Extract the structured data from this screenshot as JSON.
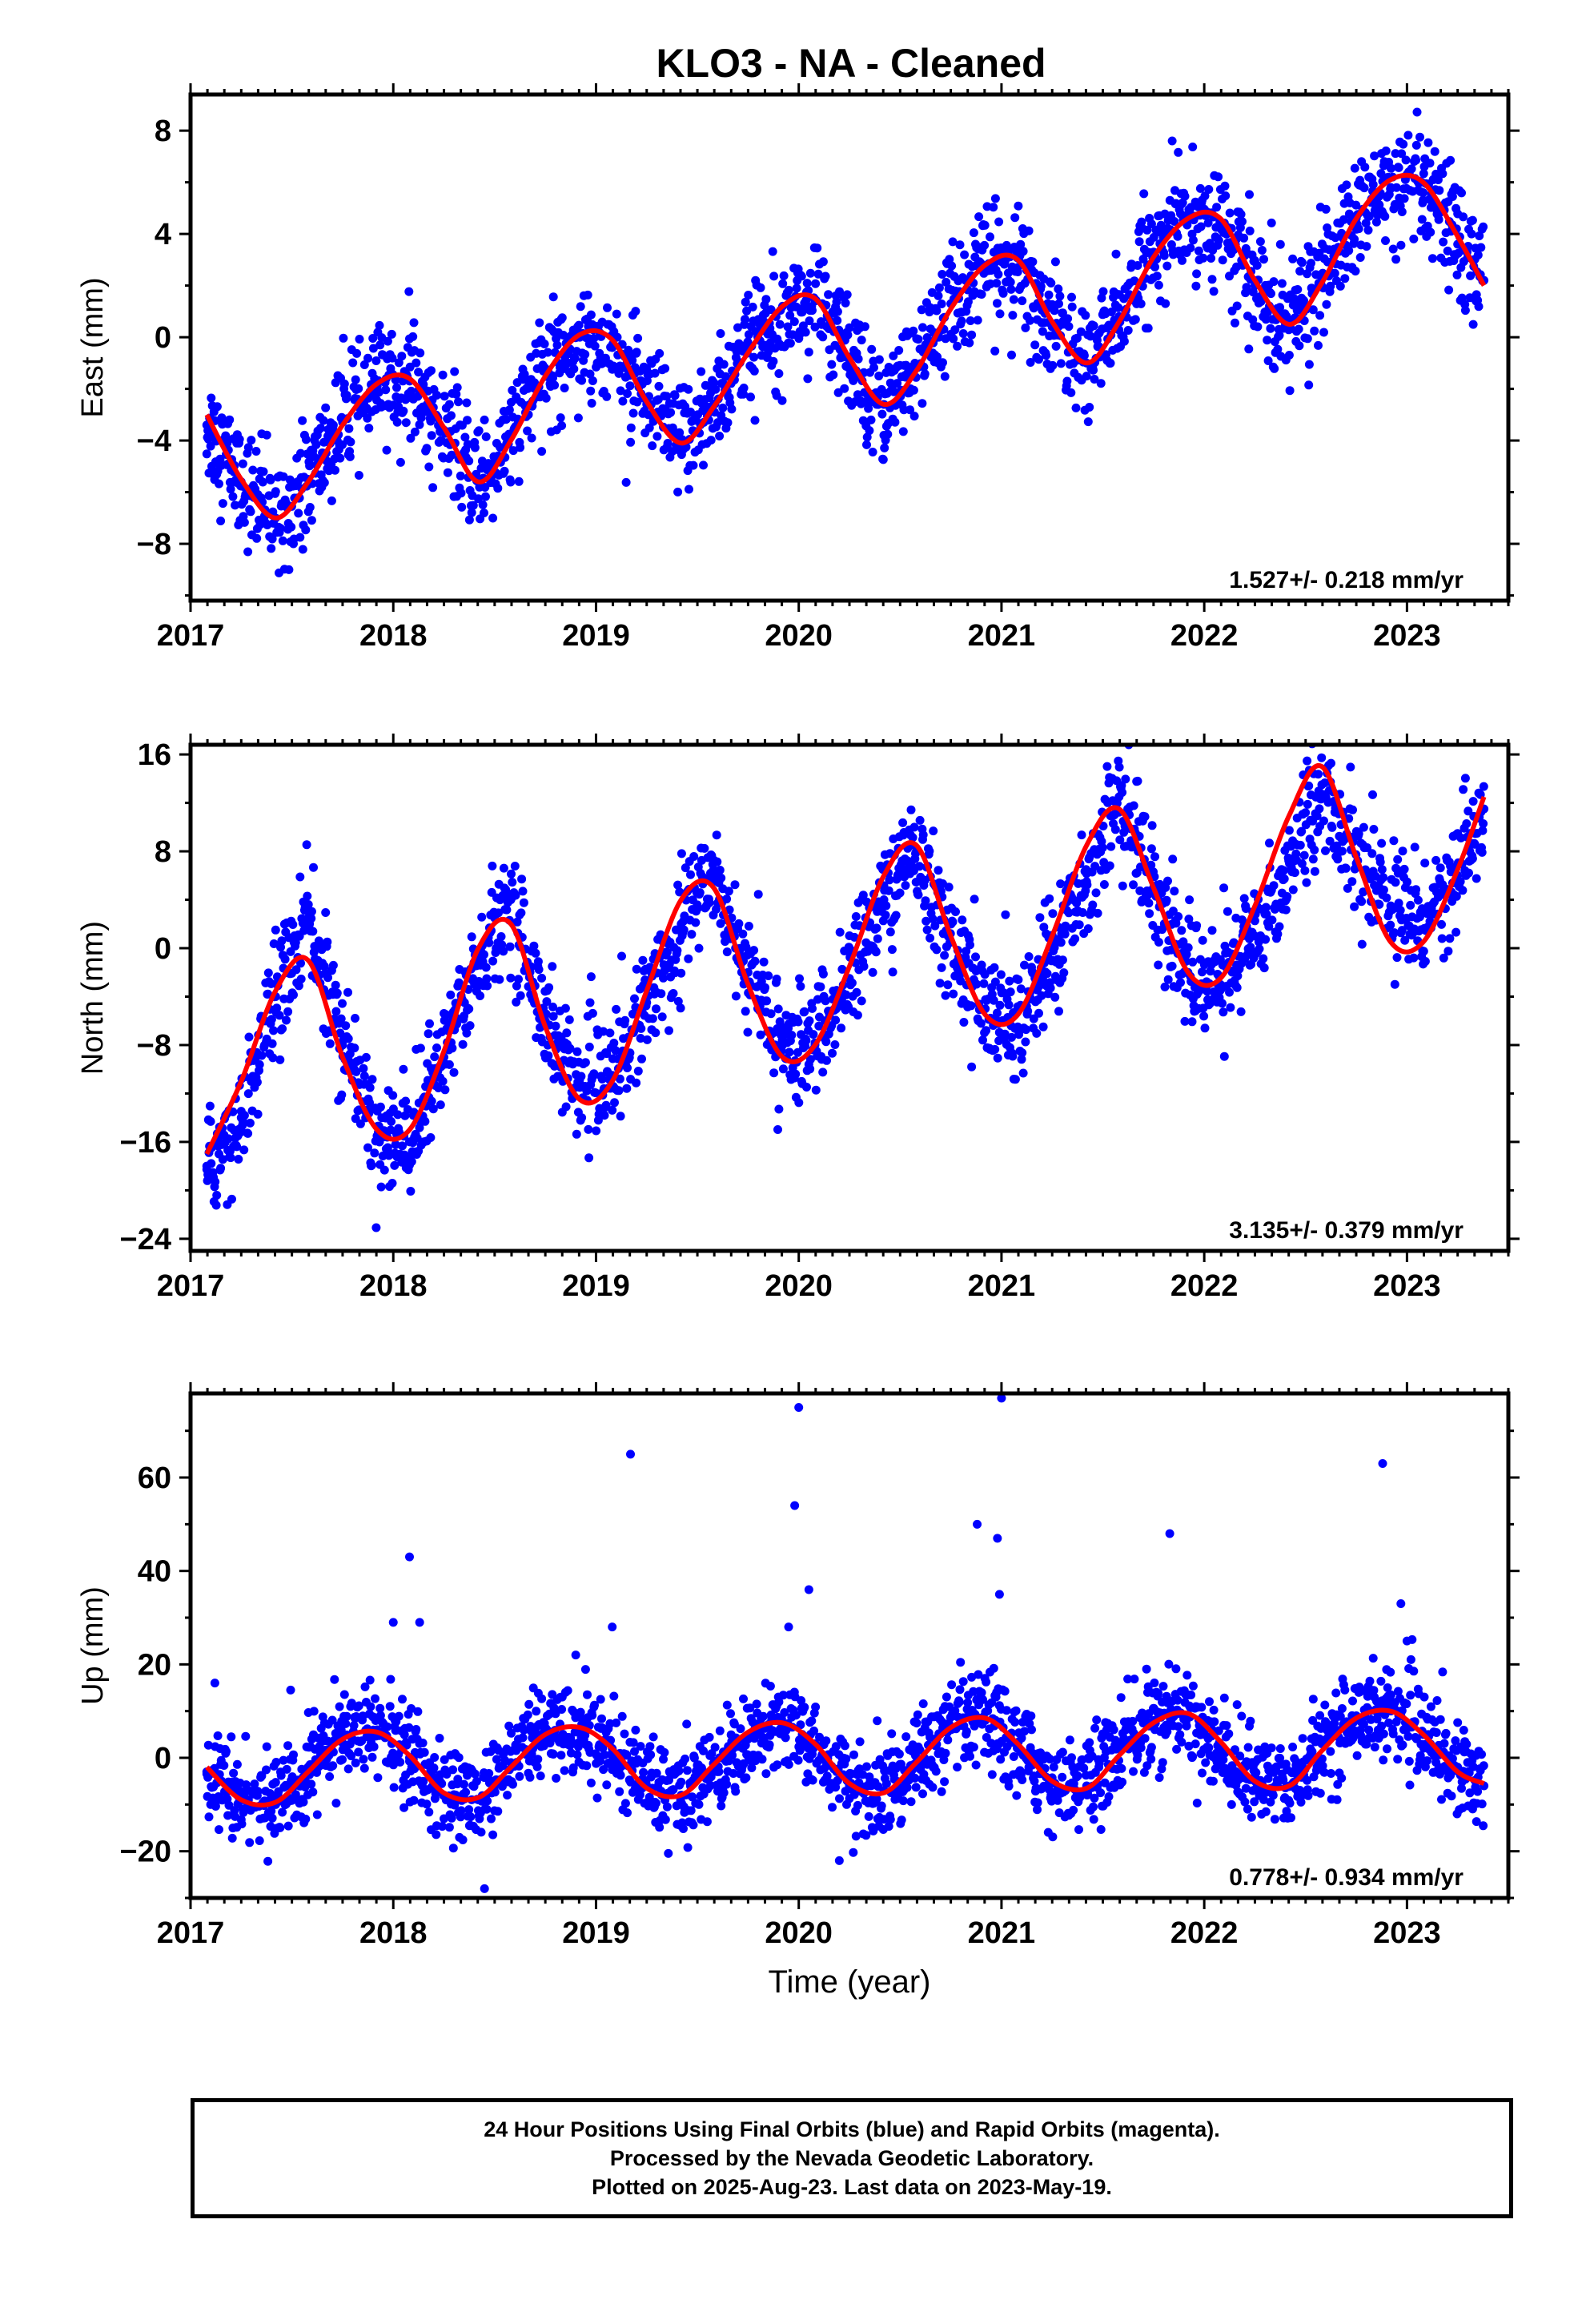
{
  "title": "KLO3  - NA - Cleaned",
  "colors": {
    "points": "#0000ff",
    "fit": "#ff0000",
    "axis": "#000000"
  },
  "chart_data": [
    {
      "type": "scatter",
      "component": "East",
      "ylabel": "East (mm)",
      "xlabel": "",
      "xlim": [
        2017.0,
        2023.5
      ],
      "ylim": [
        -10.2,
        9.4
      ],
      "yticks": [
        -8,
        -4,
        0,
        4,
        8
      ],
      "ytick_labels": [
        "−8",
        "−4",
        "0",
        "4",
        "8"
      ],
      "xticks": [
        2017,
        2018,
        2019,
        2020,
        2021,
        2022,
        2023
      ],
      "rate_label": "1.527+/- 0.218 mm/yr",
      "series": [
        {
          "kind": "points",
          "x": [
            2017.08,
            2017.25,
            2017.42,
            2017.58,
            2017.75,
            2017.92,
            2018.08,
            2018.25,
            2018.42,
            2018.58,
            2018.75,
            2018.92,
            2019.08,
            2019.25,
            2019.42,
            2019.58,
            2019.75,
            2019.92,
            2020.08,
            2020.25,
            2020.42,
            2020.58,
            2020.75,
            2020.92,
            2021.08,
            2021.25,
            2021.42,
            2021.58,
            2021.75,
            2021.92,
            2022.08,
            2022.25,
            2022.42,
            2022.58,
            2022.75,
            2022.92,
            2023.08,
            2023.25,
            2023.38
          ],
          "y": [
            -3.4,
            -5.6,
            -7.0,
            -5.5,
            -3.3,
            -1.8,
            -1.7,
            -3.6,
            -5.6,
            -3.8,
            -1.3,
            0.0,
            -0.4,
            -2.6,
            -4.1,
            -2.6,
            -0.4,
            1.2,
            1.4,
            -0.9,
            -2.6,
            -1.1,
            1.3,
            2.7,
            2.7,
            0.4,
            -1.0,
            0.8,
            3.3,
            4.6,
            4.4,
            2.0,
            0.4,
            2.3,
            4.6,
            5.8,
            5.6,
            3.6,
            2.2
          ]
        },
        {
          "kind": "fit",
          "x": [
            2017.08,
            2017.25,
            2017.42,
            2017.58,
            2017.75,
            2017.92,
            2018.08,
            2018.25,
            2018.42,
            2018.58,
            2018.75,
            2018.92,
            2019.08,
            2019.25,
            2019.42,
            2019.58,
            2019.75,
            2019.92,
            2020.08,
            2020.25,
            2020.42,
            2020.58,
            2020.75,
            2020.92,
            2021.08,
            2021.25,
            2021.42,
            2021.58,
            2021.75,
            2021.92,
            2022.08,
            2022.25,
            2022.42,
            2022.58,
            2022.75,
            2022.92,
            2023.08,
            2023.25,
            2023.38
          ],
          "y": [
            -3.0,
            -5.5,
            -7.0,
            -5.6,
            -3.4,
            -1.8,
            -1.6,
            -3.5,
            -5.6,
            -4.0,
            -1.5,
            0.1,
            -0.1,
            -2.5,
            -4.1,
            -2.7,
            -0.6,
            1.2,
            1.5,
            -0.8,
            -2.6,
            -1.3,
            1.1,
            2.8,
            3.0,
            0.6,
            -1.0,
            0.6,
            3.1,
            4.6,
            4.6,
            2.2,
            0.5,
            2.1,
            4.6,
            6.1,
            6.0,
            3.9,
            2.0
          ]
        }
      ]
    },
    {
      "type": "scatter",
      "component": "North",
      "ylabel": "North (mm)",
      "xlabel": "",
      "xlim": [
        2017.0,
        2023.5
      ],
      "ylim": [
        -25.0,
        16.8
      ],
      "yticks": [
        -24,
        -16,
        -8,
        0,
        8,
        16
      ],
      "ytick_labels": [
        "−24",
        "−16",
        "−8",
        "0",
        "8",
        "16"
      ],
      "xticks": [
        2017,
        2018,
        2019,
        2020,
        2021,
        2022,
        2023
      ],
      "rate_label": "3.135+/- 0.379 mm/yr",
      "series": [
        {
          "kind": "points",
          "x": [
            2017.08,
            2017.25,
            2017.42,
            2017.58,
            2017.75,
            2017.92,
            2018.08,
            2018.25,
            2018.42,
            2018.58,
            2018.75,
            2018.92,
            2019.08,
            2019.25,
            2019.42,
            2019.58,
            2019.75,
            2019.92,
            2020.08,
            2020.25,
            2020.42,
            2020.58,
            2020.75,
            2020.92,
            2021.08,
            2021.25,
            2021.42,
            2021.58,
            2021.75,
            2021.92,
            2022.08,
            2022.25,
            2022.42,
            2022.58,
            2022.75,
            2022.92,
            2023.08,
            2023.25,
            2023.38
          ],
          "y": [
            -18.0,
            -14.0,
            -4.0,
            2.5,
            -8.0,
            -15.5,
            -16.0,
            -9.0,
            -1.0,
            4.0,
            -6.0,
            -11.5,
            -10.5,
            -4.5,
            2.0,
            6.5,
            -2.0,
            -8.0,
            -8.0,
            -2.5,
            4.0,
            8.0,
            0.5,
            -5.0,
            -6.5,
            -1.0,
            5.5,
            12.5,
            5.0,
            -2.0,
            -3.0,
            1.0,
            7.0,
            13.5,
            7.0,
            3.5,
            3.0,
            6.0,
            11.5
          ]
        },
        {
          "kind": "fit",
          "x": [
            2017.08,
            2017.25,
            2017.42,
            2017.58,
            2017.75,
            2017.92,
            2018.08,
            2018.25,
            2018.42,
            2018.58,
            2018.75,
            2018.92,
            2019.08,
            2019.25,
            2019.42,
            2019.58,
            2019.75,
            2019.92,
            2020.08,
            2020.25,
            2020.42,
            2020.58,
            2020.75,
            2020.92,
            2021.08,
            2021.25,
            2021.42,
            2021.58,
            2021.75,
            2021.92,
            2022.08,
            2022.25,
            2022.42,
            2022.58,
            2022.75,
            2022.92,
            2023.08,
            2023.25,
            2023.38
          ],
          "y": [
            -17.0,
            -11.0,
            -3.5,
            -1.0,
            -9.0,
            -15.0,
            -15.0,
            -8.5,
            0.0,
            2.0,
            -6.5,
            -12.5,
            -11.0,
            -3.5,
            4.0,
            5.0,
            -3.0,
            -9.0,
            -8.0,
            -1.5,
            6.0,
            8.5,
            1.0,
            -5.5,
            -5.5,
            1.0,
            8.5,
            11.5,
            5.0,
            -2.0,
            -2.5,
            3.5,
            11.0,
            15.0,
            7.5,
            0.5,
            0.5,
            6.5,
            12.5
          ]
        }
      ]
    },
    {
      "type": "scatter",
      "component": "Up",
      "ylabel": "Up (mm)",
      "xlabel": "Time (year)",
      "xlim": [
        2017.0,
        2023.5
      ],
      "ylim": [
        -30,
        78
      ],
      "yticks": [
        -20,
        0,
        20,
        40,
        60
      ],
      "ytick_labels": [
        "−20",
        "0",
        "20",
        "40",
        "60"
      ],
      "xticks": [
        2017,
        2018,
        2019,
        2020,
        2021,
        2022,
        2023
      ],
      "rate_label": "0.778+/- 0.934 mm/yr",
      "series": [
        {
          "kind": "points",
          "x": [
            2017.08,
            2017.25,
            2017.42,
            2017.58,
            2017.75,
            2017.92,
            2018.08,
            2018.25,
            2018.42,
            2018.58,
            2018.75,
            2018.92,
            2019.08,
            2019.25,
            2019.42,
            2019.58,
            2019.75,
            2019.92,
            2020.08,
            2020.25,
            2020.42,
            2020.58,
            2020.75,
            2020.92,
            2021.08,
            2021.25,
            2021.42,
            2021.58,
            2021.75,
            2021.92,
            2022.08,
            2022.25,
            2022.42,
            2022.58,
            2022.75,
            2022.92,
            2023.08,
            2023.25,
            2023.38
          ],
          "y": [
            -3.0,
            -9.0,
            -10.0,
            -2.0,
            5.0,
            6.0,
            0.0,
            -8.0,
            -9.0,
            -1.0,
            5.0,
            6.0,
            2.0,
            -6.0,
            -8.0,
            -2.0,
            4.0,
            7.0,
            3.0,
            -6.0,
            -7.0,
            -1.0,
            6.0,
            8.0,
            2.0,
            -5.0,
            -6.0,
            2.0,
            8.0,
            9.0,
            1.0,
            -5.0,
            -6.0,
            3.0,
            9.0,
            10.0,
            5.0,
            -2.0,
            -6.0
          ]
        },
        {
          "kind": "outliers",
          "x": [
            2017.12,
            2018.0,
            2018.08,
            2018.13,
            2018.45,
            2019.08,
            2019.17,
            2019.95,
            2019.98,
            2020.0,
            2020.05,
            2020.88,
            2020.98,
            2020.99,
            2021.0,
            2021.83,
            2022.88,
            2022.97,
            2023.0,
            2018.9,
            2020.2
          ],
          "y": [
            16,
            29,
            43,
            29,
            -28,
            28,
            65,
            28,
            54,
            75,
            36,
            50,
            47,
            35,
            77,
            48,
            63,
            33,
            25,
            22,
            -22
          ]
        },
        {
          "kind": "fit",
          "x": [
            2017.08,
            2017.25,
            2017.42,
            2017.58,
            2017.75,
            2017.92,
            2018.08,
            2018.25,
            2018.42,
            2018.58,
            2018.75,
            2018.92,
            2019.08,
            2019.25,
            2019.42,
            2019.58,
            2019.75,
            2019.92,
            2020.08,
            2020.25,
            2020.42,
            2020.58,
            2020.75,
            2020.92,
            2021.08,
            2021.25,
            2021.42,
            2021.58,
            2021.75,
            2021.92,
            2022.08,
            2022.25,
            2022.42,
            2022.58,
            2022.75,
            2022.92,
            2023.08,
            2023.25,
            2023.38
          ],
          "y": [
            -2.0,
            -9.0,
            -9.5,
            -3.0,
            4.0,
            5.5,
            0.5,
            -7.5,
            -8.5,
            -2.0,
            5.0,
            6.5,
            2.0,
            -6.5,
            -8.0,
            -1.5,
            5.5,
            7.5,
            3.0,
            -5.5,
            -7.5,
            -1.0,
            6.5,
            8.5,
            3.0,
            -5.0,
            -6.5,
            0.5,
            7.5,
            9.5,
            3.5,
            -5.0,
            -6.0,
            1.5,
            8.5,
            10.0,
            5.0,
            -3.0,
            -5.5
          ]
        }
      ]
    }
  ],
  "footer": {
    "line1": "24 Hour Positions Using Final Orbits (blue) and Rapid Orbits (magenta).",
    "line2": "Processed by the Nevada Geodetic Laboratory.",
    "line3": "Plotted on 2025-Aug-23. Last data on 2023-May-19."
  }
}
